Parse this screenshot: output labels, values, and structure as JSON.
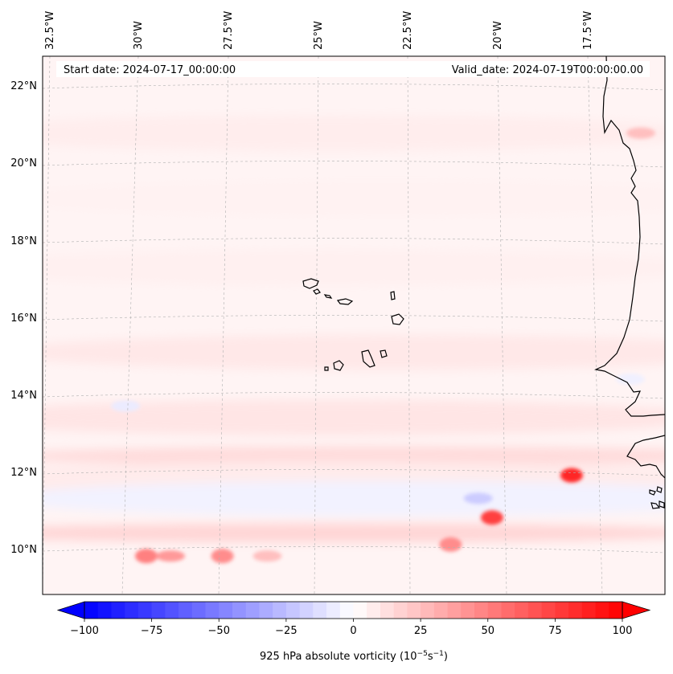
{
  "header": {
    "start_date": "Start date: 2024-07-17_00:00:00",
    "valid_date": "Valid_date: 2024-07-19T00:00:00.00"
  },
  "longitude_labels": [
    "32.5°W",
    "30°W",
    "27.5°W",
    "25°W",
    "22.5°W",
    "20°W",
    "17.5°W"
  ],
  "latitude_labels": [
    "22°N",
    "20°N",
    "18°N",
    "16°N",
    "14°N",
    "12°N",
    "10°N"
  ],
  "colorbar": {
    "label_main": "925 hPa absolute vorticity (10",
    "label_exp1": "−5",
    "label_mid": "s",
    "label_exp2": "−1",
    "label_end": ")",
    "ticks": [
      -100,
      -75,
      -50,
      -25,
      0,
      25,
      50,
      75,
      100
    ],
    "tick_labels": [
      "−100",
      "−75",
      "−50",
      "−25",
      "0",
      "25",
      "50",
      "75",
      "100"
    ],
    "min": -100,
    "max": 100,
    "levels": 40,
    "colors": {
      "negative": "#0000ff",
      "zero": "#ffffff",
      "positive": "#ff0000"
    }
  },
  "chart_data": {
    "type": "heatmap",
    "variable": "925 hPa absolute vorticity",
    "units": "1e-5 s^-1",
    "domain": {
      "lon_range": [
        -33,
        -15
      ],
      "lat_range": [
        9,
        23
      ]
    },
    "bands": [
      {
        "lat": 21.0,
        "value": 7
      },
      {
        "lat": 19.3,
        "value": 5
      },
      {
        "lat": 17.5,
        "value": 6
      },
      {
        "lat": 15.3,
        "value": 9
      },
      {
        "lat": 13.6,
        "value": 10
      },
      {
        "lat": 12.6,
        "value": 14
      },
      {
        "lat": 12.0,
        "value": 8
      },
      {
        "lat": 11.5,
        "value": -5
      },
      {
        "lat": 10.6,
        "value": 16
      }
    ],
    "blobs": [
      {
        "lon": -17.7,
        "lat": 12.1,
        "value": 85
      },
      {
        "lon": -20.0,
        "lat": 11.0,
        "value": 75
      },
      {
        "lon": -21.2,
        "lat": 10.3,
        "value": 45
      },
      {
        "lon": -30.0,
        "lat": 10.0,
        "value": 50
      },
      {
        "lon": -29.3,
        "lat": 10.0,
        "value": 40
      },
      {
        "lon": -27.8,
        "lat": 10.0,
        "value": 45
      },
      {
        "lon": -26.5,
        "lat": 10.0,
        "value": 25
      },
      {
        "lon": -20.4,
        "lat": 11.5,
        "value": -20
      },
      {
        "lon": -30.6,
        "lat": 13.9,
        "value": -8
      },
      {
        "lon": -16.0,
        "lat": 14.6,
        "value": -6
      },
      {
        "lon": -15.7,
        "lat": 21.0,
        "value": 25
      }
    ]
  }
}
